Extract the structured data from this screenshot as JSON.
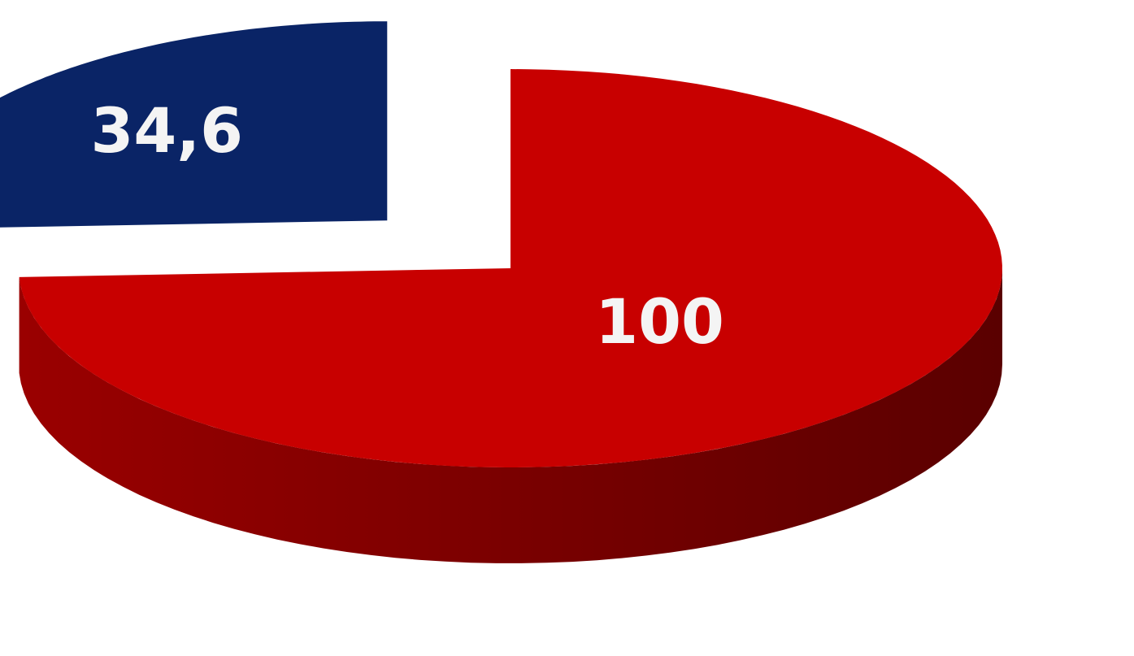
{
  "chart_data": {
    "type": "pie",
    "style": "3d-exploded",
    "categories": [
      "",
      ""
    ],
    "values": [
      100,
      34.6
    ],
    "data_labels": [
      "100",
      "34,6"
    ],
    "colors": [
      "#c80000",
      "#0a2466"
    ],
    "title": "",
    "legend": "none"
  }
}
